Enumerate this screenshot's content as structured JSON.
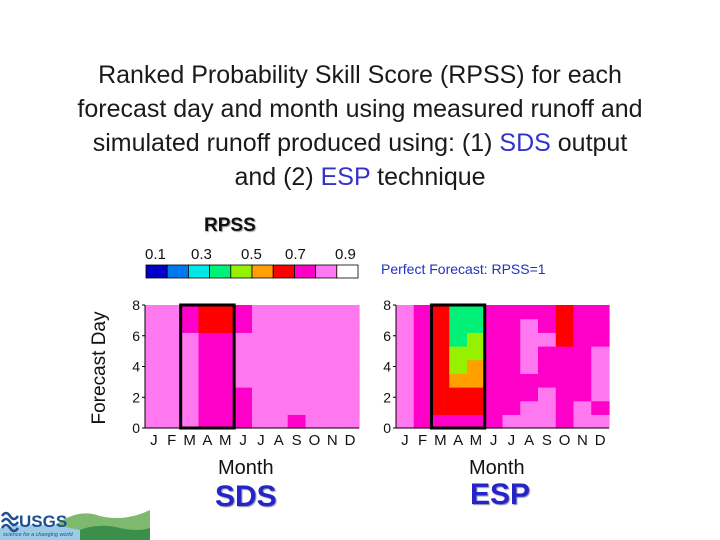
{
  "title": {
    "line1": "Ranked Probability Skill Score (RPSS) for each",
    "line2": "forecast day and month using measured runoff and",
    "line3_pre": "simulated runoff produced using: (1) ",
    "line3_hl": "SDS",
    "line3_post": " output",
    "line4_pre": "and (2) ",
    "line4_hl": "ESP",
    "line4_post": " technique"
  },
  "colorbar": {
    "label": "RPSS",
    "ticks": [
      "0.1",
      "0.3",
      "0.5",
      "0.7",
      "0.9"
    ],
    "colors": [
      "#0000c8",
      "#0078f0",
      "#00e6e6",
      "#00f078",
      "#96f000",
      "#ffa000",
      "#ff0000",
      "#ff00c8",
      "#ff78f0",
      "#ffffff"
    ]
  },
  "note": "Perfect Forecast: RPSS=1",
  "chart_data": [
    {
      "type": "heatmap",
      "name": "SDS",
      "xlabel": "Month",
      "ylabel": "Forecast Day",
      "x_ticks": [
        "J",
        "F",
        "M",
        "A",
        "M",
        "J",
        "J",
        "A",
        "S",
        "O",
        "N",
        "D"
      ],
      "y_ticks": [
        "0",
        "2",
        "4",
        "6",
        "8"
      ],
      "ylim": [
        0,
        8
      ],
      "highlight_months": [
        "M",
        "A",
        "M"
      ],
      "values": [
        [
          0.85,
          0.85,
          0.8,
          0.75,
          0.74,
          0.75,
          0.85,
          0.82,
          0.78,
          0.85,
          0.88,
          0.85
        ],
        [
          0.85,
          0.82,
          0.8,
          0.76,
          0.76,
          0.78,
          0.8,
          0.8,
          0.82,
          0.86,
          0.88,
          0.85
        ],
        [
          0.83,
          0.8,
          0.8,
          0.75,
          0.75,
          0.78,
          0.8,
          0.82,
          0.84,
          0.86,
          0.86,
          0.84
        ],
        [
          0.84,
          0.82,
          0.82,
          0.75,
          0.75,
          0.8,
          0.82,
          0.84,
          0.86,
          0.88,
          0.86,
          0.86
        ],
        [
          0.85,
          0.85,
          0.82,
          0.75,
          0.72,
          0.8,
          0.82,
          0.82,
          0.86,
          0.85,
          0.88,
          0.86
        ],
        [
          0.87,
          0.86,
          0.8,
          0.74,
          0.72,
          0.8,
          0.82,
          0.84,
          0.86,
          0.85,
          0.86,
          0.86
        ],
        [
          0.86,
          0.86,
          0.8,
          0.7,
          0.7,
          0.8,
          0.82,
          0.82,
          0.84,
          0.85,
          0.86,
          0.84
        ],
        [
          0.85,
          0.85,
          0.78,
          0.64,
          0.64,
          0.78,
          0.8,
          0.82,
          0.84,
          0.85,
          0.86,
          0.85
        ],
        [
          0.84,
          0.86,
          0.78,
          0.63,
          0.62,
          0.78,
          0.8,
          0.8,
          0.82,
          0.85,
          0.86,
          0.84
        ]
      ]
    },
    {
      "type": "heatmap",
      "name": "ESP",
      "xlabel": "Month",
      "ylabel": "Forecast Day",
      "x_ticks": [
        "J",
        "F",
        "M",
        "A",
        "M",
        "J",
        "J",
        "A",
        "S",
        "O",
        "N",
        "D"
      ],
      "y_ticks": [
        "0",
        "2",
        "4",
        "6",
        "8"
      ],
      "ylim": [
        0,
        8
      ],
      "highlight_months": [
        "M",
        "A",
        "M"
      ],
      "values": [
        [
          0.8,
          0.75,
          0.72,
          0.75,
          0.76,
          0.78,
          0.8,
          0.82,
          0.8,
          0.78,
          0.8,
          0.8
        ],
        [
          0.8,
          0.76,
          0.68,
          0.64,
          0.66,
          0.74,
          0.78,
          0.8,
          0.8,
          0.76,
          0.8,
          0.78
        ],
        [
          0.8,
          0.76,
          0.66,
          0.6,
          0.62,
          0.72,
          0.76,
          0.78,
          0.82,
          0.72,
          0.78,
          0.8
        ],
        [
          0.82,
          0.76,
          0.64,
          0.54,
          0.56,
          0.72,
          0.76,
          0.78,
          0.78,
          0.72,
          0.78,
          0.8
        ],
        [
          0.82,
          0.76,
          0.64,
          0.46,
          0.5,
          0.72,
          0.76,
          0.8,
          0.78,
          0.7,
          0.76,
          0.8
        ],
        [
          0.8,
          0.78,
          0.64,
          0.4,
          0.44,
          0.7,
          0.78,
          0.8,
          0.78,
          0.7,
          0.76,
          0.8
        ],
        [
          0.82,
          0.78,
          0.64,
          0.34,
          0.4,
          0.7,
          0.78,
          0.8,
          0.8,
          0.66,
          0.76,
          0.78
        ],
        [
          0.82,
          0.78,
          0.66,
          0.32,
          0.38,
          0.7,
          0.76,
          0.8,
          0.78,
          0.68,
          0.74,
          0.76
        ],
        [
          0.8,
          0.78,
          0.68,
          0.3,
          0.36,
          0.7,
          0.76,
          0.78,
          0.78,
          0.68,
          0.74,
          0.76
        ]
      ]
    }
  ],
  "logo": {
    "text": "USGS",
    "tagline": "science for a changing world"
  }
}
